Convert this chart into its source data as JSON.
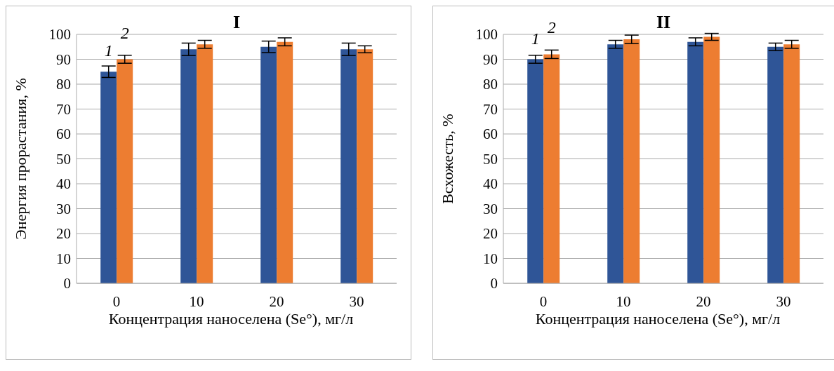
{
  "chart_data": [
    {
      "type": "bar",
      "title": "I",
      "xlabel": "Концентрация наноселена (Se°), мг/л",
      "ylabel": "Энергия прорастания, %",
      "categories": [
        "0",
        "10",
        "20",
        "30"
      ],
      "series": [
        {
          "name": "1",
          "color": "#2f5597",
          "values": [
            85,
            94,
            95,
            94
          ],
          "errors": [
            2.3,
            2.5,
            2.3,
            2.5
          ]
        },
        {
          "name": "2",
          "color": "#ed7d31",
          "values": [
            90,
            96,
            97,
            94
          ],
          "errors": [
            1.6,
            1.6,
            1.6,
            1.4
          ]
        }
      ],
      "ylim": [
        0,
        100
      ],
      "yticks": [
        0,
        10,
        20,
        30,
        40,
        50,
        60,
        70,
        80,
        90,
        100
      ],
      "grid": "y",
      "legend": false
    },
    {
      "type": "bar",
      "title": "II",
      "xlabel": "Концентрация наноселена (Se°), мг/л",
      "ylabel": "Всхожесть, %",
      "categories": [
        "0",
        "10",
        "20",
        "30"
      ],
      "series": [
        {
          "name": "1",
          "color": "#2f5597",
          "values": [
            90,
            96,
            97,
            95
          ],
          "errors": [
            1.6,
            1.6,
            1.6,
            1.5
          ]
        },
        {
          "name": "2",
          "color": "#ed7d31",
          "values": [
            92,
            98,
            99,
            96
          ],
          "errors": [
            1.7,
            1.7,
            1.4,
            1.6
          ]
        }
      ],
      "ylim": [
        0,
        100
      ],
      "yticks": [
        0,
        10,
        20,
        30,
        40,
        50,
        60,
        70,
        80,
        90,
        100
      ],
      "grid": "y",
      "legend": false
    }
  ]
}
